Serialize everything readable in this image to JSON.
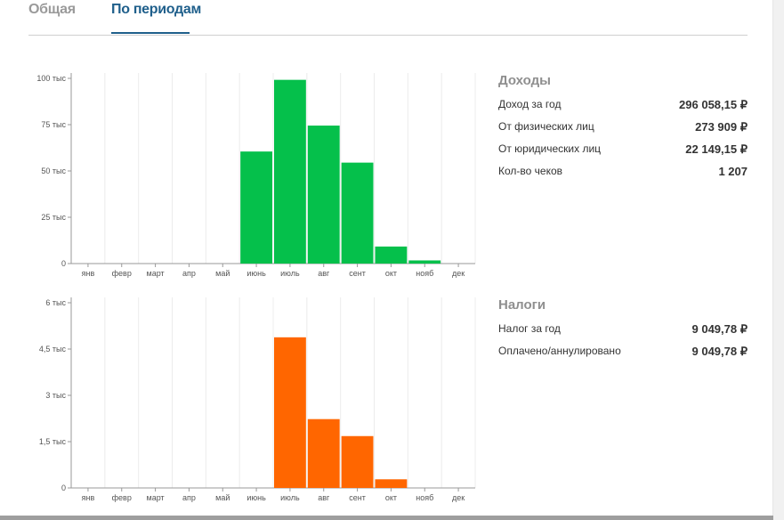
{
  "tabs": [
    {
      "label": "Общая",
      "active": false
    },
    {
      "label": "По периодам",
      "active": true
    }
  ],
  "income": {
    "title": "Доходы",
    "rows": [
      {
        "label": "Доход за год",
        "value": "296 058,15 ₽"
      },
      {
        "label": "От физических лиц",
        "value": "273 909 ₽"
      },
      {
        "label": "От юридических лиц",
        "value": "22 149,15 ₽"
      },
      {
        "label": "Кол-во чеков",
        "value": "1 207"
      }
    ]
  },
  "taxes": {
    "title": "Налоги",
    "rows": [
      {
        "label": "Налог за год",
        "value": "9 049,78 ₽"
      },
      {
        "label": "Оплачено/аннулировано",
        "value": "9 049,78 ₽"
      }
    ]
  },
  "chart_data": [
    {
      "type": "bar",
      "categories": [
        "янв",
        "февр",
        "март",
        "апр",
        "май",
        "июнь",
        "июль",
        "авг",
        "сент",
        "окт",
        "нояб",
        "дек"
      ],
      "values": [
        0,
        0,
        0,
        0,
        0,
        60500,
        99200,
        74500,
        54500,
        9200,
        1700,
        0
      ],
      "yticks": [
        "0",
        "25 тыс",
        "50 тыс",
        "75 тыс",
        "100 тыс"
      ],
      "tick_values": [
        0,
        25000,
        50000,
        75000,
        100000
      ],
      "ylim": [
        0,
        100000
      ],
      "color": "#05c04b",
      "grid": "vertical"
    },
    {
      "type": "bar",
      "categories": [
        "янв",
        "февр",
        "март",
        "апр",
        "май",
        "июнь",
        "июль",
        "авг",
        "сент",
        "окт",
        "нояб",
        "дек"
      ],
      "values": [
        0,
        0,
        0,
        0,
        0,
        0,
        4880,
        2230,
        1680,
        280,
        0,
        0
      ],
      "yticks": [
        "0",
        "1,5 тыс",
        "3 тыс",
        "4,5 тыс",
        "6 тыс"
      ],
      "tick_values": [
        0,
        1500,
        3000,
        4500,
        6000
      ],
      "ylim": [
        0,
        6000
      ],
      "color": "#ff6600",
      "grid": "vertical"
    }
  ]
}
